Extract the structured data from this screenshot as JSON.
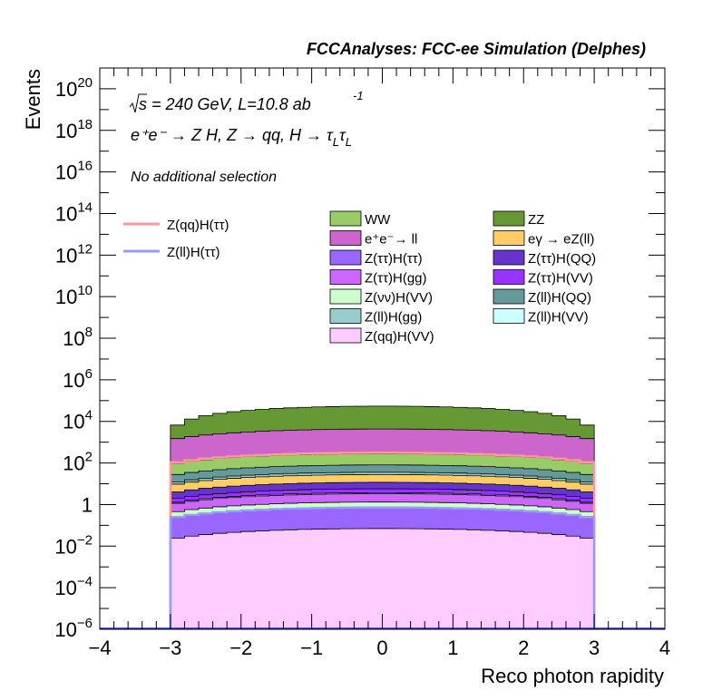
{
  "chart_data": {
    "type": "area",
    "title": "FCCAnalyses: FCC-ee Simulation (Delphes)",
    "xlabel": "Reco photon rapidity",
    "ylabel": "Events",
    "xlim": [
      -4,
      4
    ],
    "ylim_exp": [
      -6,
      21
    ],
    "yscale": "log",
    "x_ticks": [
      -4,
      -3,
      -2,
      -1,
      0,
      1,
      2,
      3,
      4
    ],
    "x_tick_labels": [
      "−4",
      "−3",
      "−2",
      "−1",
      "0",
      "1",
      "2",
      "3",
      "4"
    ],
    "y_tick_labels": [
      {
        "exp": 20,
        "base": "10",
        "sup": "20"
      },
      {
        "exp": 18,
        "base": "10",
        "sup": "18"
      },
      {
        "exp": 16,
        "base": "10",
        "sup": "16"
      },
      {
        "exp": 14,
        "base": "10",
        "sup": "14"
      },
      {
        "exp": 12,
        "base": "10",
        "sup": "12"
      },
      {
        "exp": 10,
        "base": "10",
        "sup": "10"
      },
      {
        "exp": 8,
        "base": "10",
        "sup": "8"
      },
      {
        "exp": 6,
        "base": "10",
        "sup": "6"
      },
      {
        "exp": 4,
        "base": "10",
        "sup": "4"
      },
      {
        "exp": 2,
        "base": "10",
        "sup": "2"
      },
      {
        "exp": 0,
        "base": "1",
        "sup": ""
      },
      {
        "exp": -2,
        "base": "10",
        "sup": "−2"
      },
      {
        "exp": -4,
        "base": "10",
        "sup": "−4"
      },
      {
        "exp": -6,
        "base": "10",
        "sup": "−6"
      }
    ],
    "bins": {
      "start": -3.0,
      "end": 3.0,
      "count": 30
    },
    "annotations": {
      "energy_line": "s = 240 GeV, L=10.8 ab",
      "energy_sup": "-1",
      "sqrt_symbol": "√",
      "process_line": "e⁺e⁻ → Z H, Z  → qq, H  →  τ",
      "process_sub1": "L",
      "process_tau2": "τ",
      "process_sub2": "L",
      "selection": "No additional selection"
    },
    "stack_series": [
      {
        "name": "Z(qq)H(VV)",
        "color": "#ffccff",
        "center": 0.07,
        "edge": 0.021
      },
      {
        "name": "Z(ττ)H(ττ)",
        "color": "#9966ff",
        "center": 0.6,
        "edge": 0.18
      },
      {
        "name": "Z(ll)H(ττ)",
        "color": "#9999ff",
        "center": 0.05,
        "edge": 0.015
      },
      {
        "name": "Z(νν)H(VV)",
        "color": "#ccffcc",
        "center": 0.6,
        "edge": 0.18
      },
      {
        "name": "Z(ττ)H(gg)",
        "color": "#cc66ff",
        "center": 2.0,
        "edge": 0.6
      },
      {
        "name": "Z(ll)H(VV)",
        "color": "#ccffff",
        "center": 0.4,
        "edge": 0.12
      },
      {
        "name": "Z(ττ)H(VV)",
        "color": "#9933ff",
        "center": 2.0,
        "edge": 0.6
      },
      {
        "name": "Z(ττ)H(QQ)",
        "color": "#6633cc",
        "center": 6.0,
        "edge": 1.8
      },
      {
        "name": "eγ → eZ(ll)",
        "color": "#ffcc66",
        "center": 16.0,
        "edge": 4.8
      },
      {
        "name": "Z(ll)H(gg)",
        "color": "#99cccc",
        "center": 8.0,
        "edge": 2.4
      },
      {
        "name": "Z(ll)H(QQ)",
        "color": "#669999",
        "center": 45.0,
        "edge": 13.5
      },
      {
        "name": "WW",
        "color": "#99cc66",
        "center": 200.0,
        "edge": 60.0
      },
      {
        "name": "Z(qq)H(ττ)",
        "color": "#ff9999",
        "center": 30.0,
        "edge": 9.0
      },
      {
        "name": "e⁺e⁻→ ll",
        "color": "#cc66cc",
        "center": 4000.0,
        "edge": 1200.0
      },
      {
        "name": "ZZ",
        "color": "#669933",
        "center": 50000.0,
        "edge": 2000.0
      }
    ],
    "line_legend": [
      {
        "name": "Z(qq)H(ττ)",
        "color": "#ff9999"
      },
      {
        "name": "Z(ll)H(ττ)",
        "color": "#9999ff"
      }
    ],
    "legend_columns": [
      [
        {
          "name": "WW",
          "color": "#99cc66"
        },
        {
          "name": "e⁺e⁻→ ll",
          "color": "#cc66cc"
        },
        {
          "name": "Z(ττ)H(ττ)",
          "color": "#9966ff"
        },
        {
          "name": "Z(ττ)H(gg)",
          "color": "#cc66ff"
        },
        {
          "name": "Z(νν)H(VV)",
          "color": "#ccffcc"
        },
        {
          "name": "Z(ll)H(gg)",
          "color": "#99cccc"
        },
        {
          "name": "Z(qq)H(VV)",
          "color": "#ffccff"
        }
      ],
      [
        {
          "name": "ZZ",
          "color": "#669933"
        },
        {
          "name": "eγ → eZ(ll)",
          "color": "#ffcc66"
        },
        {
          "name": "Z(ττ)H(QQ)",
          "color": "#6633cc"
        },
        {
          "name": "Z(ττ)H(VV)",
          "color": "#9933ff"
        },
        {
          "name": "Z(ll)H(QQ)",
          "color": "#669999"
        },
        {
          "name": "Z(ll)H(VV)",
          "color": "#ccffff"
        }
      ]
    ]
  }
}
